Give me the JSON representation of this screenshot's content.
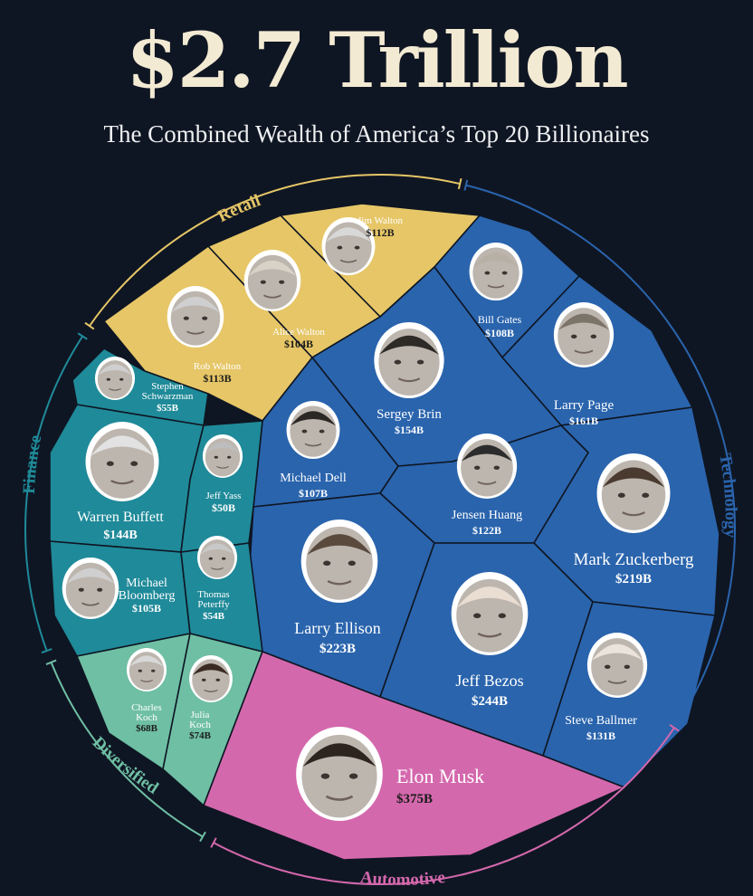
{
  "headline": "$2.7 Trillion",
  "subtitle": "The Combined Wealth of America’s Top 20 Billionaires",
  "sectors": [
    {
      "id": "retail",
      "label": "Retail",
      "color": "#e6c667"
    },
    {
      "id": "technology",
      "label": "Technology",
      "color": "#2a64ad"
    },
    {
      "id": "finance",
      "label": "Finance",
      "color": "#1f8a99"
    },
    {
      "id": "diversified",
      "label": "Diversified",
      "color": "#6fbfa4"
    },
    {
      "id": "automotive",
      "label": "Automotive",
      "color": "#d468ad"
    }
  ],
  "people": [
    {
      "id": "jim-walton",
      "name": "Jim Walton",
      "value": "$112B",
      "sector": "retail"
    },
    {
      "id": "rob-walton",
      "name": "Rob Walton",
      "value": "$113B",
      "sector": "retail"
    },
    {
      "id": "alice-walton",
      "name": "Alice Walton",
      "value": "$104B",
      "sector": "retail"
    },
    {
      "id": "bill-gates",
      "name": "Bill Gates",
      "value": "$108B",
      "sector": "technology"
    },
    {
      "id": "larry-page",
      "name": "Larry Page",
      "value": "$161B",
      "sector": "technology"
    },
    {
      "id": "sergey-brin",
      "name": "Sergey Brin",
      "value": "$154B",
      "sector": "technology"
    },
    {
      "id": "michael-dell",
      "name": "Michael Dell",
      "value": "$107B",
      "sector": "technology"
    },
    {
      "id": "jensen-huang",
      "name": "Jensen Huang",
      "value": "$122B",
      "sector": "technology"
    },
    {
      "id": "mark-zuckerberg",
      "name": "Mark Zuckerberg",
      "value": "$219B",
      "sector": "technology"
    },
    {
      "id": "larry-ellison",
      "name": "Larry Ellison",
      "value": "$223B",
      "sector": "technology"
    },
    {
      "id": "jeff-bezos",
      "name": "Jeff Bezos",
      "value": "$244B",
      "sector": "technology"
    },
    {
      "id": "steve-ballmer",
      "name": "Steve Ballmer",
      "value": "$131B",
      "sector": "technology"
    },
    {
      "id": "stephen-schwarzman",
      "name": "Stephen Schwarzman",
      "value": "$55B",
      "sector": "finance"
    },
    {
      "id": "warren-buffett",
      "name": "Warren Buffett",
      "value": "$144B",
      "sector": "finance"
    },
    {
      "id": "jeff-yass",
      "name": "Jeff Yass",
      "value": "$50B",
      "sector": "finance"
    },
    {
      "id": "michael-bloomberg",
      "name": "Michael Bloomberg",
      "value": "$105B",
      "sector": "finance"
    },
    {
      "id": "thomas-peterffy",
      "name": "Thomas Peterffy",
      "value": "$54B",
      "sector": "finance"
    },
    {
      "id": "charles-koch",
      "name": "Charles Koch",
      "value": "$68B",
      "sector": "diversified"
    },
    {
      "id": "julia-koch",
      "name": "Julia Koch",
      "value": "$74B",
      "sector": "diversified"
    },
    {
      "id": "elon-musk",
      "name": "Elon Musk",
      "value": "$375B",
      "sector": "automotive"
    }
  ]
}
